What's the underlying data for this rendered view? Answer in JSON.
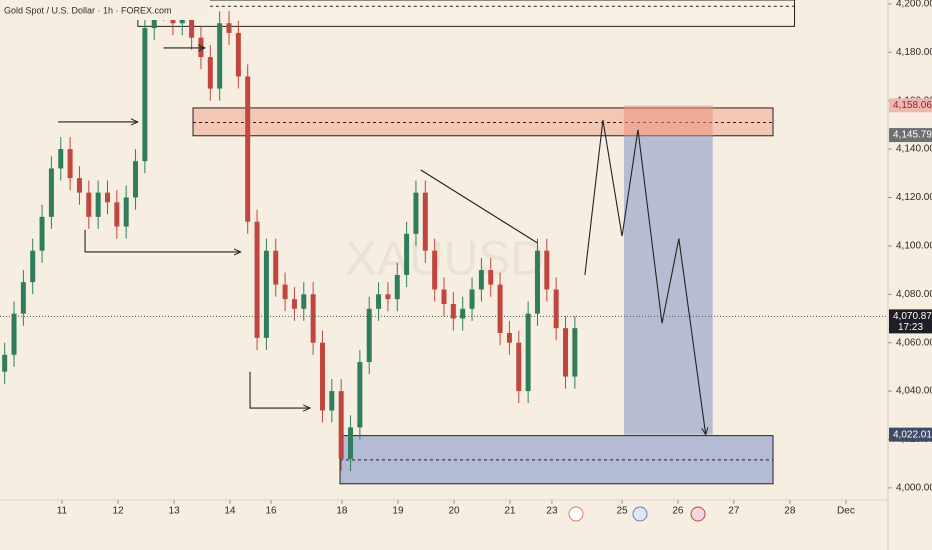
{
  "chart_data": {
    "type": "candlestick",
    "title": "Gold Spot / U.S. Dollar · 1h · FOREX.com",
    "watermark": "XAUUSD",
    "x": [
      2,
      6,
      10,
      14,
      18,
      22,
      26,
      30,
      34,
      38,
      42,
      46,
      50,
      54,
      58,
      62,
      66,
      70,
      74,
      78,
      82,
      86,
      90,
      94,
      98,
      102,
      106,
      110,
      114,
      118,
      122,
      126,
      130,
      134,
      138,
      142,
      146,
      150,
      154,
      158,
      162,
      166,
      170,
      174,
      178,
      182,
      186,
      190,
      194,
      198,
      202,
      206,
      210,
      214,
      218,
      222,
      226,
      230,
      234,
      238,
      242,
      246
    ],
    "open": [
      4048,
      4055,
      4072,
      4085,
      4098,
      4112,
      4132,
      4140,
      4128,
      4122,
      4112,
      4122,
      4118,
      4108,
      4120,
      4135,
      4190,
      4198,
      4200,
      4192,
      4196,
      4186,
      4178,
      4165,
      4192,
      4188,
      4170,
      4110,
      4062,
      4098,
      4084,
      4078,
      4074,
      4080,
      4060,
      4032,
      4040,
      4012,
      4025,
      4052,
      4074,
      4080,
      4078,
      4088,
      4105,
      4122,
      4098,
      4082,
      4076,
      4070,
      4074,
      4082,
      4090,
      4084,
      4064,
      4060,
      4040,
      4072,
      4098,
      4082,
      4066,
      4046
    ],
    "high": [
      4060,
      4077,
      4090,
      4103,
      4117,
      4137,
      4145,
      4145,
      4133,
      4127,
      4127,
      4127,
      4123,
      4125,
      4140,
      4195,
      4203,
      4205,
      4205,
      4201,
      4201,
      4191,
      4183,
      4197,
      4197,
      4193,
      4175,
      4115,
      4103,
      4103,
      4089,
      4083,
      4085,
      4085,
      4065,
      4045,
      4045,
      4030,
      4057,
      4079,
      4085,
      4085,
      4093,
      4110,
      4127,
      4127,
      4103,
      4087,
      4081,
      4079,
      4087,
      4095,
      4095,
      4089,
      4069,
      4065,
      4077,
      4103,
      4103,
      4087,
      4071,
      4071
    ],
    "low": [
      4043,
      4050,
      4067,
      4080,
      4093,
      4107,
      4127,
      4123,
      4117,
      4107,
      4107,
      4113,
      4103,
      4103,
      4115,
      4130,
      4185,
      4193,
      4187,
      4187,
      4181,
      4173,
      4160,
      4160,
      4183,
      4165,
      4105,
      4057,
      4057,
      4079,
      4073,
      4069,
      4069,
      4055,
      4027,
      4027,
      4007,
      4007,
      4020,
      4047,
      4069,
      4073,
      4073,
      4083,
      4100,
      4093,
      4077,
      4071,
      4065,
      4065,
      4069,
      4077,
      4079,
      4059,
      4055,
      4035,
      4035,
      4067,
      4077,
      4061,
      4041,
      4041
    ],
    "close": [
      4055,
      4072,
      4085,
      4098,
      4112,
      4132,
      4140,
      4128,
      4122,
      4112,
      4122,
      4118,
      4108,
      4120,
      4135,
      4190,
      4198,
      4200,
      4192,
      4196,
      4186,
      4178,
      4165,
      4192,
      4188,
      4170,
      4110,
      4062,
      4098,
      4084,
      4078,
      4074,
      4080,
      4060,
      4032,
      4040,
      4012,
      4025,
      4052,
      4074,
      4080,
      4078,
      4088,
      4105,
      4122,
      4098,
      4082,
      4076,
      4070,
      4074,
      4082,
      4090,
      4084,
      4064,
      4060,
      4040,
      4072,
      4098,
      4082,
      4066,
      4046,
      4066
    ],
    "up_color": "#2f7d5c",
    "down_color": "#c0463f",
    "xlim": [
      0,
      380
    ],
    "ylim": [
      3995,
      4201.6
    ],
    "xticks": [
      {
        "value": 26.5,
        "label": "11"
      },
      {
        "value": 50.5,
        "label": "12"
      },
      {
        "value": 74.5,
        "label": "13"
      },
      {
        "value": 98.4,
        "label": "14"
      },
      {
        "value": 116,
        "label": "16"
      },
      {
        "value": 146.3,
        "label": "18"
      },
      {
        "value": 170.3,
        "label": "19"
      },
      {
        "value": 194.3,
        "label": "20"
      },
      {
        "value": 218.2,
        "label": "21"
      },
      {
        "value": 236.2,
        "label": "23"
      },
      {
        "value": 266.2,
        "label": "25"
      },
      {
        "value": 290.1,
        "label": "26"
      },
      {
        "value": 314,
        "label": "27"
      },
      {
        "value": 338,
        "label": "28"
      },
      {
        "value": 362,
        "label": "Dec"
      }
    ],
    "yticks": [
      {
        "value": 4000,
        "label": "4,000.00"
      },
      {
        "value": 4020,
        "label": "4,020.00"
      },
      {
        "value": 4040,
        "label": "4,040.00"
      },
      {
        "value": 4060,
        "label": "4,060.00"
      },
      {
        "value": 4080,
        "label": "4,080.00"
      },
      {
        "value": 4100,
        "label": "4,100.00"
      },
      {
        "value": 4120,
        "label": "4,120.00"
      },
      {
        "value": 4140,
        "label": "4,140.00"
      },
      {
        "value": 4160,
        "label": "4,160.00"
      },
      {
        "value": 4180,
        "label": "4,180.00"
      },
      {
        "value": 4200,
        "label": "4,200.00"
      }
    ],
    "zones": [
      {
        "x": [
          59,
          340
        ],
        "y": [
          4190.7,
          4201.6
        ],
        "mid": 4199,
        "color": "#f6efe1"
      },
      {
        "x": [
          82.6,
          330.8
        ],
        "y": [
          4145.5,
          4157
        ],
        "mid": 4151,
        "color": "#f3b9a4"
      },
      {
        "x": [
          145.5,
          330.8
        ],
        "y": [
          4001.7,
          4021.6
        ],
        "mid": 4011.6,
        "color": "#9eaad0"
      }
    ],
    "lines": [
      {
        "x": [
          24.8,
          59
        ],
        "y": [
          4151.2,
          4151.2
        ],
        "arrow": true
      },
      {
        "x": [
          70,
          87.7
        ],
        "y": [
          4181.8,
          4181.8
        ],
        "arrow": true
      },
      {
        "x": [
          36.4,
          36.4,
          103
        ],
        "y": [
          4106.6,
          4097.5,
          4097.5
        ],
        "arrow": true
      },
      {
        "x": [
          107,
          107,
          132.7
        ],
        "y": [
          4048,
          4033,
          4033
        ],
        "arrow": true
      },
      {
        "x": [
          180,
          230
        ],
        "y": [
          4131.4,
          4101.2
        ],
        "arrow": false
      },
      {
        "x": [
          250.3,
          258,
          266.2,
          273,
          283.3,
          290.5,
          302
        ],
        "y": [
          4088,
          4152,
          4104,
          4148,
          4068,
          4103,
          4022
        ],
        "arrow": true
      }
    ],
    "projection": {
      "x": [
        267,
        305
      ],
      "top": {
        "value": 4158.06,
        "label": "4,158.06"
      },
      "entry": {
        "value": 4145.79,
        "label": "4,145.79"
      },
      "bottom": {
        "value": 4022.01,
        "label": "4,022.01"
      }
    },
    "current_price": {
      "value": 4070.87,
      "label": "4,070.87",
      "countdown": "17:23"
    }
  }
}
